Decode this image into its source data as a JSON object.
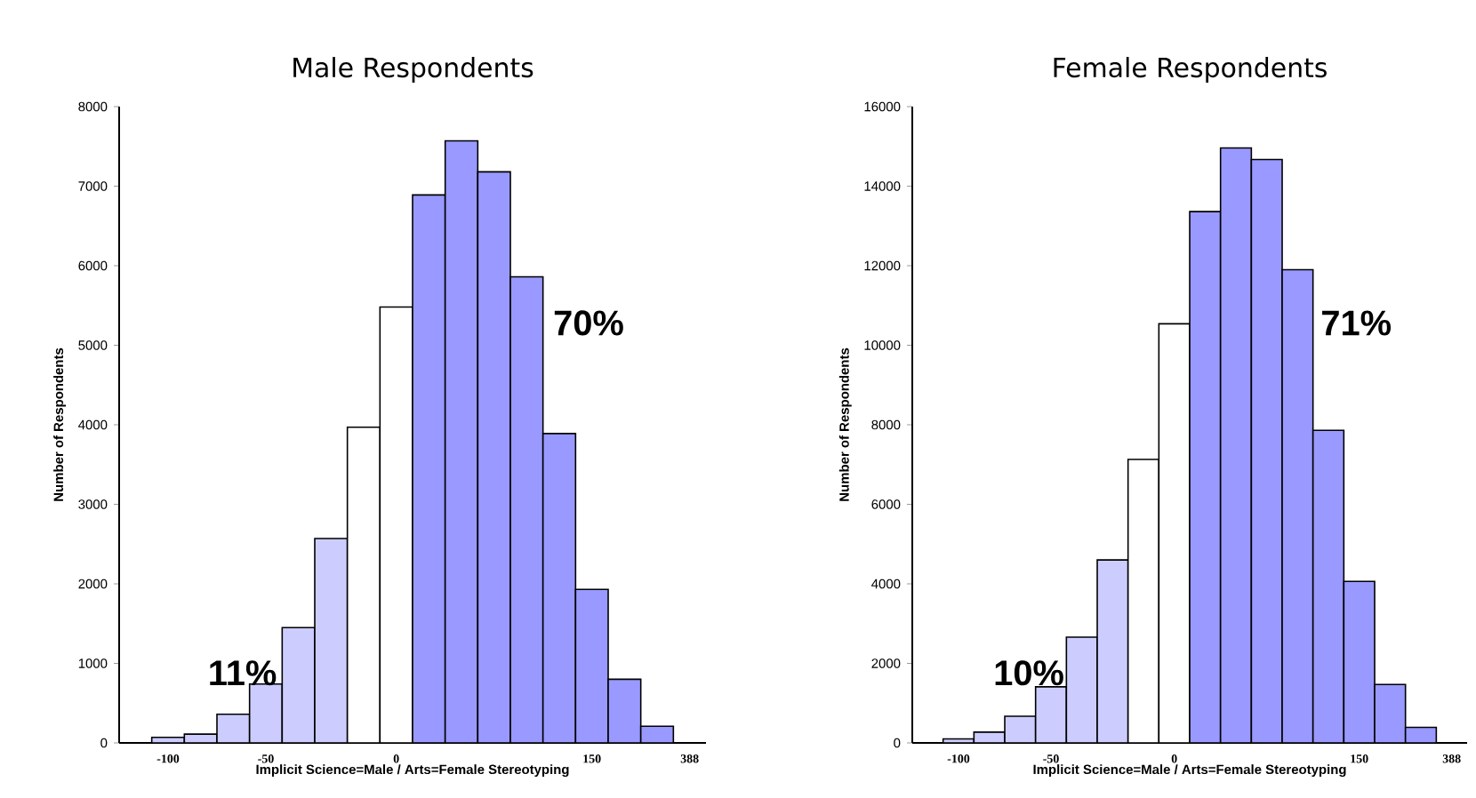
{
  "chart_data": [
    {
      "type": "bar",
      "title": "Male Respondents",
      "xlabel": "Implicit Science=Male / Arts=Female Stereotyping",
      "ylabel": "Number of Respondents",
      "categories": [
        null,
        "-100",
        null,
        null,
        "-50",
        null,
        null,
        null,
        "0",
        null,
        null,
        null,
        null,
        null,
        "150",
        null,
        null,
        "388"
      ],
      "values": [
        null,
        70,
        110,
        360,
        740,
        1450,
        2570,
        3970,
        5480,
        6890,
        7570,
        7180,
        5860,
        3890,
        1930,
        800,
        210,
        null
      ],
      "colors": [
        "#ccccff",
        "#ccccff",
        "#ccccff",
        "#ccccff",
        "#ccccff",
        "#ccccff",
        "#ccccff",
        "#ffffff",
        "#ffffff",
        "#9999ff",
        "#9999ff",
        "#9999ff",
        "#9999ff",
        "#9999ff",
        "#9999ff",
        "#9999ff",
        "#9999ff",
        "#9999ff"
      ],
      "ylim": [
        0,
        8000
      ],
      "yticks": [
        0,
        1000,
        2000,
        3000,
        4000,
        5000,
        6000,
        7000,
        8000
      ],
      "annotations": [
        "11%",
        "70%"
      ]
    },
    {
      "type": "bar",
      "title": "Female Respondents",
      "xlabel": "Implicit Science=Male / Arts=Female Stereotyping",
      "ylabel": "Number of Respondents",
      "categories": [
        null,
        "-100",
        null,
        null,
        "-50",
        null,
        null,
        null,
        "0",
        null,
        null,
        null,
        null,
        null,
        "150",
        null,
        null,
        "388"
      ],
      "values": [
        null,
        100,
        270,
        670,
        1410,
        2660,
        4600,
        7130,
        10540,
        13360,
        14960,
        14670,
        11900,
        7860,
        4060,
        1470,
        390,
        null
      ],
      "colors": [
        "#ccccff",
        "#ccccff",
        "#ccccff",
        "#ccccff",
        "#ccccff",
        "#ccccff",
        "#ccccff",
        "#ffffff",
        "#ffffff",
        "#9999ff",
        "#9999ff",
        "#9999ff",
        "#9999ff",
        "#9999ff",
        "#9999ff",
        "#9999ff",
        "#9999ff",
        "#9999ff"
      ],
      "ylim": [
        0,
        16000
      ],
      "yticks": [
        0,
        2000,
        4000,
        6000,
        8000,
        10000,
        12000,
        14000,
        16000
      ],
      "annotations": [
        "10%",
        "71%"
      ]
    }
  ]
}
